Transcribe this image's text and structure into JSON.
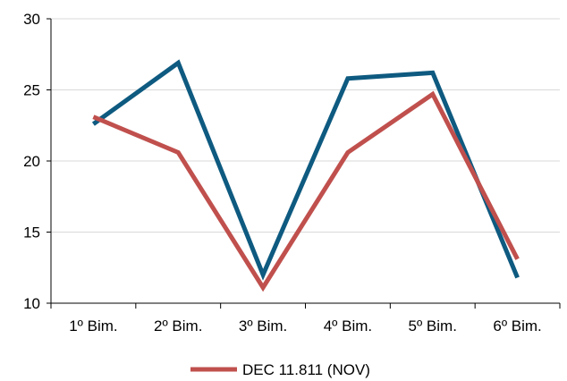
{
  "chart_data": {
    "type": "line",
    "categories": [
      "1º Bim.",
      "2º Bim.",
      "3º Bim.",
      "4º Bim.",
      "5º Bim.",
      "6º Bim."
    ],
    "series": [
      {
        "values": [
          22.6,
          26.9,
          12.0,
          25.8,
          26.2,
          11.8
        ],
        "color": "#0E5A80"
      },
      {
        "name": "DEC 11.811 (NOV)",
        "values": [
          23.1,
          20.6,
          11.1,
          20.6,
          24.7,
          13.1
        ],
        "color": "#C0504D"
      }
    ],
    "ylim": [
      10,
      30
    ],
    "yticks": [
      10,
      15,
      20,
      25,
      30
    ],
    "grid": true,
    "legend": "bottom",
    "title": "",
    "xlabel": "",
    "ylabel": ""
  }
}
